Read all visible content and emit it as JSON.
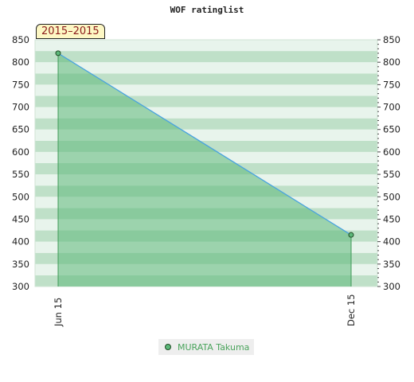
{
  "page": {
    "title": "WOF ratinglist",
    "period_badge": "2015–2015",
    "legend_label": "MURATA Takuma"
  },
  "chart_data": {
    "type": "area",
    "title": "WOF ratinglist",
    "xlabel": "",
    "ylabel": "",
    "ylim": [
      300,
      850
    ],
    "y_ticks": [
      300,
      350,
      400,
      450,
      500,
      550,
      600,
      650,
      700,
      750,
      800,
      850
    ],
    "x_ticks": [
      "Jun 15",
      "Dec 15"
    ],
    "grid": true,
    "legend": "bottom",
    "series": [
      {
        "name": "MURATA Takuma",
        "x": [
          "Jun 15",
          "Dec 15"
        ],
        "values": [
          820,
          415
        ]
      }
    ],
    "colors": {
      "line": "#4aa3df",
      "fill": "#5cb87a",
      "marker": "#5cb87a",
      "marker_stroke": "#1e4a22",
      "band_dark": "#bfe0c8",
      "band_light": "#e8f4ec"
    }
  }
}
